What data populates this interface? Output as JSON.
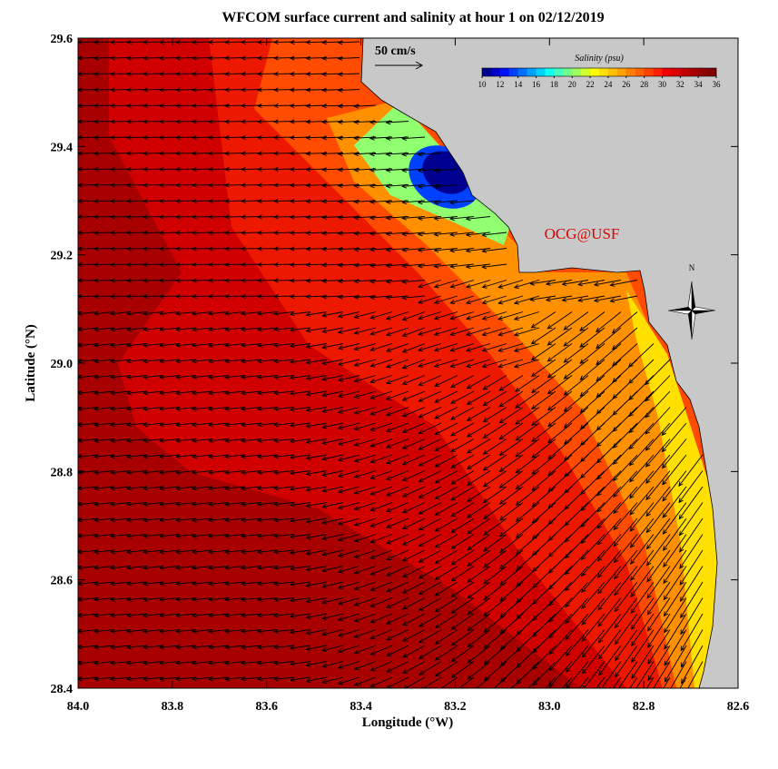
{
  "map": {
    "title": "WFCOM surface current and salinity at hour 1 on 02/12/2019",
    "xlabel": "Longitude (°W)",
    "ylabel": "Latitude (°N)",
    "xlim": [
      84,
      82.6
    ],
    "ylim": [
      28.4,
      29.6
    ],
    "xticks": [
      {
        "value": 84,
        "label": "84.0"
      },
      83.8,
      83.6,
      83.4,
      83.2,
      {
        "value": 83,
        "label": "83.0"
      },
      82.8,
      82.6
    ],
    "yticks": [
      28.4,
      28.6,
      28.8,
      {
        "value": 29,
        "label": "29.0"
      },
      29.2,
      29.4,
      29.6
    ],
    "scale_label": "50 cm/s",
    "watermark": "OCG@USF",
    "compass_label": "N",
    "colorbar": {
      "title": "Salinity (psu)",
      "range": [
        10,
        36
      ],
      "ticks": [
        10,
        12,
        14,
        16,
        18,
        20,
        22,
        24,
        26,
        28,
        30,
        32,
        34,
        36
      ],
      "colors": [
        "#00008f",
        "#0000c8",
        "#0010ff",
        "#0040ff",
        "#0070ff",
        "#00a0ff",
        "#00d0ff",
        "#10ffef",
        "#40ffbf",
        "#70ff8f",
        "#a0ff60",
        "#d0ff30",
        "#ffff00",
        "#ffe000",
        "#ffc000",
        "#ffa000",
        "#ff8000",
        "#ff6000",
        "#ff4000",
        "#ff2000",
        "#f00000",
        "#d80000",
        "#c00000",
        "#a80000",
        "#900000",
        "#800000"
      ]
    }
  }
}
